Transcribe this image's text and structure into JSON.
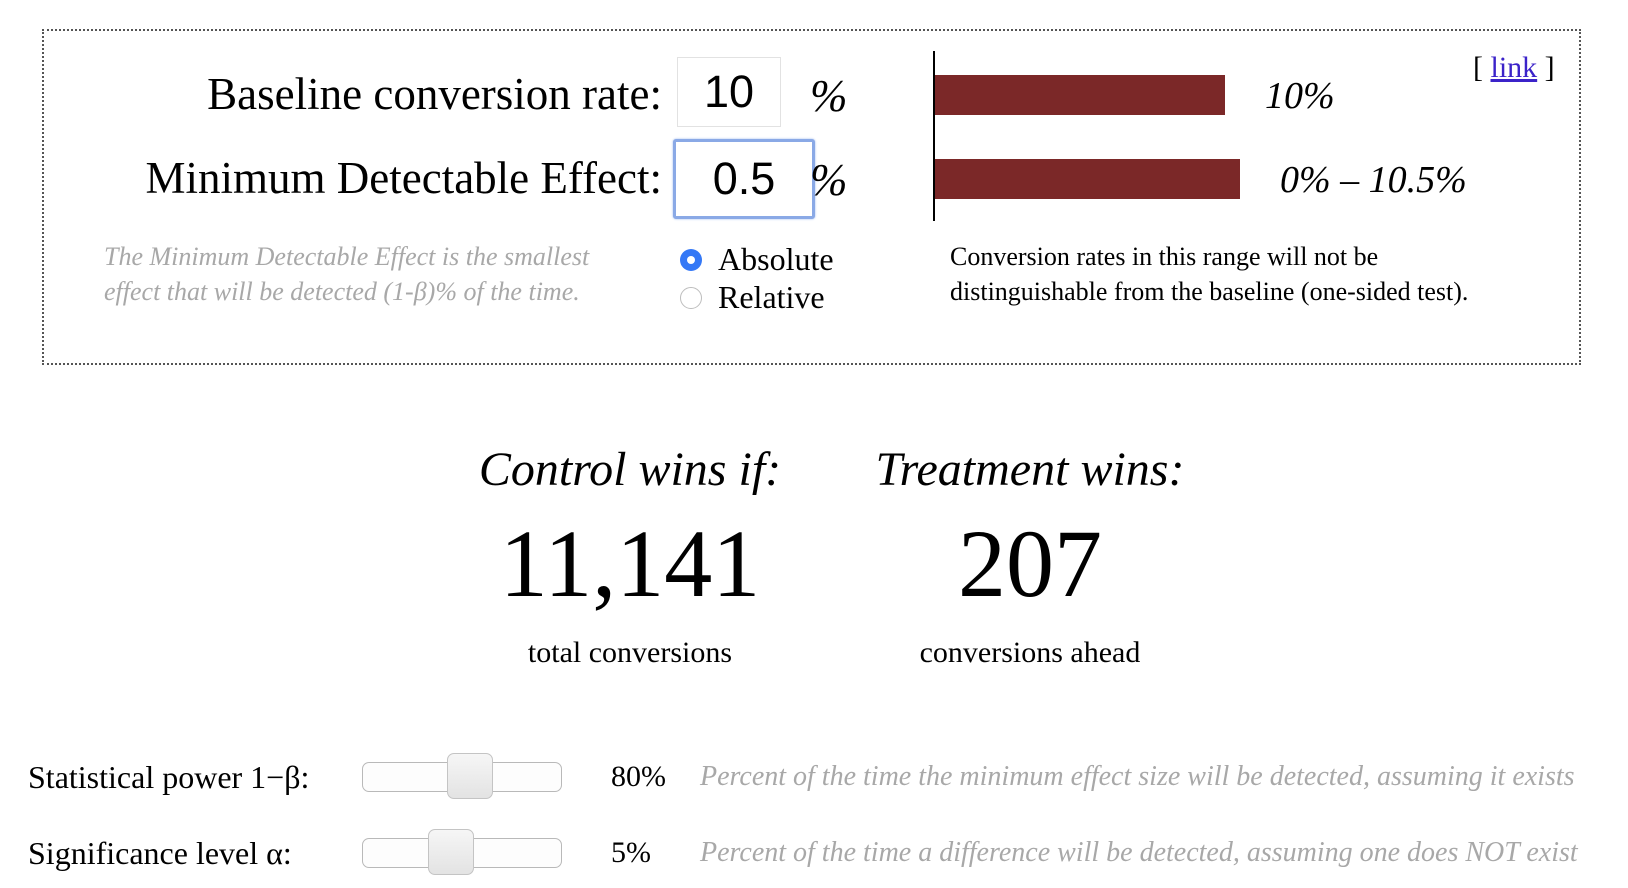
{
  "link": {
    "open": "[",
    "label": "link",
    "close": "]"
  },
  "baseline": {
    "label": "Baseline conversion rate:",
    "value": "10",
    "unit": "%"
  },
  "mde": {
    "label": "Minimum Detectable Effect:",
    "value": "0.5",
    "unit": "%",
    "hint_line1": "The Minimum Detectable Effect is the smallest",
    "hint_line2": "effect that will be detected (1-β)% of the time.",
    "options": [
      {
        "label": "Absolute",
        "checked": true
      },
      {
        "label": "Relative",
        "checked": false
      }
    ]
  },
  "range_chart": {
    "bars": [
      {
        "label": "10%",
        "value": 10
      },
      {
        "label": "0% – 10.5%",
        "value": 10.5
      }
    ],
    "bar_color": "#7b2828",
    "note_line1": "Conversion rates in this range will not be",
    "note_line2": "distinguishable from the baseline (one-sided test)."
  },
  "results": {
    "control": {
      "heading": "Control wins if:",
      "value": "11,141",
      "caption": "total conversions"
    },
    "treatment": {
      "heading": "Treatment wins:",
      "value": "207",
      "caption": "conversions ahead"
    }
  },
  "sliders": [
    {
      "label": "Statistical power 1−β:",
      "value": "80%",
      "level": 0.55,
      "description": "Percent of the time the minimum effect size will be detected, assuming it exists"
    },
    {
      "label": "Significance level α:",
      "value": "5%",
      "level": 0.43,
      "description": "Percent of the time a difference will be detected, assuming one does NOT exist"
    }
  ]
}
